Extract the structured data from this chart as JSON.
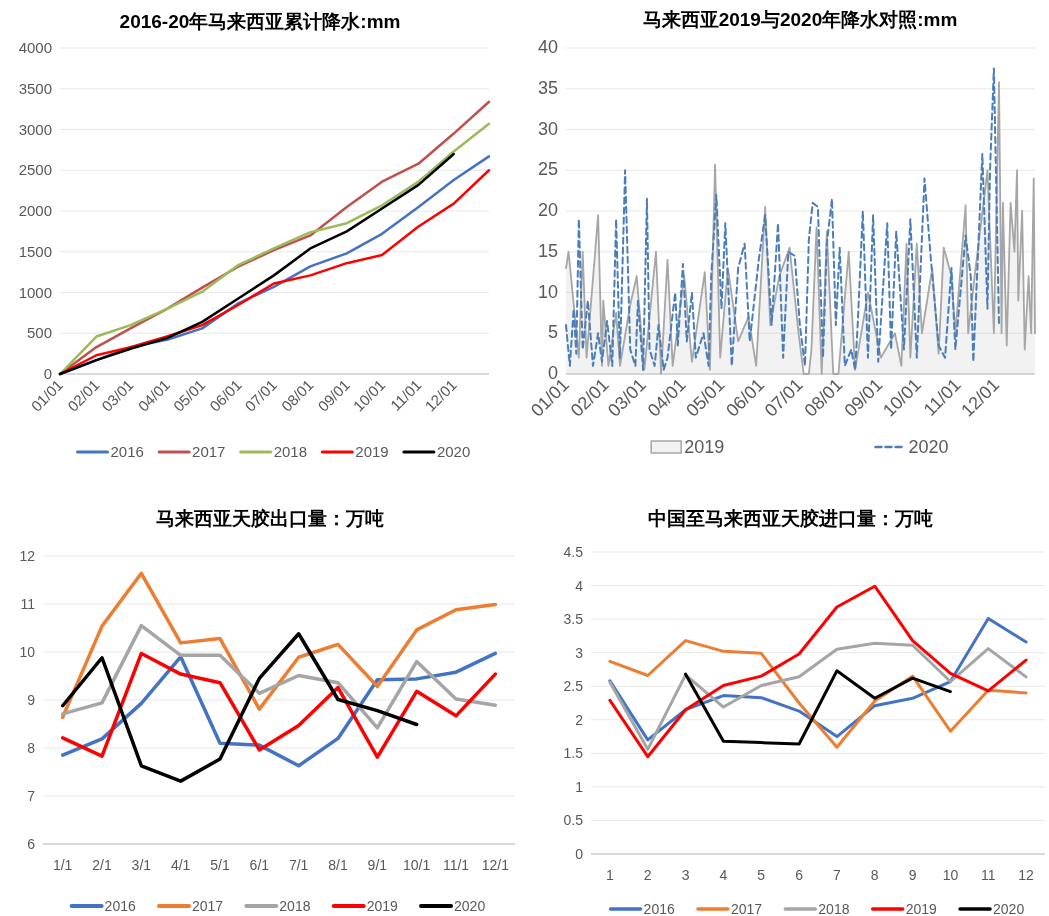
{
  "chart_data": [
    {
      "type": "line",
      "title": "2016-20年马来西亚累计降水:mm",
      "x": [
        "--01-01",
        "--02-01",
        "--03-01",
        "--04-01",
        "--05-01",
        "--06-01",
        "--07-01",
        "--08-01",
        "--09-01",
        "--10-01",
        "--11-01",
        "--12-01",
        "--12-31"
      ],
      "xlim": [
        "--01-01",
        "--12-31"
      ],
      "xticks": [
        {
          "value": "--01-01",
          "label": "01/01"
        },
        {
          "value": "--02-01",
          "label": "02/01"
        },
        {
          "value": "--03-01",
          "label": "03/01"
        },
        {
          "value": "--04-01",
          "label": "04/01"
        },
        {
          "value": "--05-01",
          "label": "05/01"
        },
        {
          "value": "--06-01",
          "label": "06/01"
        },
        {
          "value": "--07-01",
          "label": "07/01"
        },
        {
          "value": "--08-01",
          "label": "08/01"
        },
        {
          "value": "--09-01",
          "label": "09/01"
        },
        {
          "value": "--10-01",
          "label": "10/01"
        },
        {
          "value": "--11-01",
          "label": "11/01"
        },
        {
          "value": "--12-01",
          "label": "12/01"
        }
      ],
      "ylim": [
        0,
        4000
      ],
      "yticks": [
        0,
        500,
        1000,
        1500,
        2000,
        2500,
        3000,
        3500,
        4000
      ],
      "grid": "y",
      "legend": "bottom",
      "series": [
        {
          "name": "2016",
          "color": "#4472c4",
          "values": [
            0,
            170,
            330,
            420,
            560,
            870,
            1070,
            1320,
            1480,
            1720,
            2050,
            2380,
            2670
          ]
        },
        {
          "name": "2017",
          "color": "#c0504d",
          "values": [
            0,
            330,
            560,
            800,
            1060,
            1320,
            1520,
            1700,
            2050,
            2360,
            2580,
            2950,
            3340
          ]
        },
        {
          "name": "2018",
          "color": "#9bbb59",
          "values": [
            0,
            460,
            600,
            800,
            1010,
            1340,
            1540,
            1740,
            1850,
            2070,
            2360,
            2730,
            3070
          ]
        },
        {
          "name": "2019",
          "color": "#ff0000",
          "values": [
            0,
            230,
            330,
            460,
            600,
            850,
            1110,
            1210,
            1360,
            1460,
            1810,
            2090,
            2500
          ]
        },
        {
          "name": "2020",
          "color": "#000000",
          "values": [
            0,
            170,
            310,
            440,
            640,
            930,
            1210,
            1540,
            1750,
            2030,
            2320,
            2700,
            null
          ]
        }
      ]
    },
    {
      "type": "area",
      "title": "马来西亚2019与2020年降水对照:mm",
      "xlim": [
        "--01-01",
        "--12-31"
      ],
      "xticks": [
        {
          "value": "--01-01",
          "label": "01/01"
        },
        {
          "value": "--02-01",
          "label": "02/01"
        },
        {
          "value": "--03-01",
          "label": "03/01"
        },
        {
          "value": "--04-01",
          "label": "04/01"
        },
        {
          "value": "--05-01",
          "label": "05/01"
        },
        {
          "value": "--06-01",
          "label": "06/01"
        },
        {
          "value": "--07-01",
          "label": "07/01"
        },
        {
          "value": "--08-01",
          "label": "08/01"
        },
        {
          "value": "--09-01",
          "label": "09/01"
        },
        {
          "value": "--10-01",
          "label": "10/01"
        },
        {
          "value": "--11-01",
          "label": "11/01"
        },
        {
          "value": "--12-01",
          "label": "12/01"
        }
      ],
      "ylim": [
        0,
        40
      ],
      "yticks": [
        0,
        5,
        10,
        15,
        20,
        25,
        30,
        35,
        40
      ],
      "grid": "y",
      "legend": "bottom",
      "series": [
        {
          "name": "2019",
          "color": "#a6a6a6",
          "x": [
            "--01-01",
            "--01-03",
            "--01-11",
            "--01-14",
            "--01-17",
            "--01-26",
            "--01-29",
            "--01-30",
            "--02-03",
            "--02-09",
            "--02-12",
            "--02-20",
            "--02-25",
            "--03-02",
            "--03-11",
            "--03-15",
            "--03-20",
            "--03-24",
            "--04-02",
            "--04-08",
            "--04-18",
            "--04-22",
            "--04-26",
            "--04-30",
            "--05-06",
            "--05-14",
            "--05-22",
            "--05-28",
            "--06-04",
            "--06-08",
            "--06-15",
            "--06-23",
            "--06-30",
            "--07-04",
            "--07-08",
            "--07-10",
            "--07-14",
            "--07-18",
            "--07-22",
            "--07-27",
            "--07-31",
            "--08-08",
            "--08-13",
            "--08-23",
            "--08-28",
            "--09-02",
            "--09-13",
            "--09-18",
            "--09-22",
            "--09-25",
            "--09-30",
            "--10-04",
            "--10-12",
            "--10-17",
            "--10-21",
            "--10-27",
            "--10-30",
            "--11-07",
            "--11-09",
            "--11-14",
            "--11-24",
            "--11-29",
            "--12-03",
            "--12-05",
            "--12-06",
            "--12-09",
            "--12-12",
            "--12-15",
            "--12-17",
            "--12-18",
            "--12-21",
            "--12-23",
            "--12-26",
            "--12-28",
            "--12-30",
            "--12-31"
          ],
          "values": [
            13,
            15,
            2,
            15,
            2,
            19.5,
            1,
            9,
            1,
            7.5,
            1,
            8.5,
            12,
            0.5,
            15,
            0,
            14,
            1,
            12,
            1.5,
            12.5,
            0.5,
            25.7,
            2,
            13,
            4,
            7,
            1,
            20.5,
            6,
            12,
            15.5,
            5,
            0,
            0,
            3,
            18,
            0,
            17.5,
            0,
            0,
            15,
            0.5,
            10,
            6,
            2,
            5,
            1,
            16,
            2,
            16,
            5,
            13,
            2.5,
            15.5,
            12,
            5,
            20.7,
            5,
            12,
            25,
            5,
            35.8,
            5,
            21,
            3.5,
            21,
            15,
            25,
            9,
            20,
            3,
            12,
            5,
            24,
            5
          ]
        },
        {
          "name": "2020",
          "type": "line",
          "line_style": "dashed",
          "color": "#4a7ebb",
          "x": [
            "--01-01",
            "--01-04",
            "--01-07",
            "--01-09",
            "--01-11",
            "--01-14",
            "--01-18",
            "--01-22",
            "--01-26",
            "--01-29",
            "--02-02",
            "--02-06",
            "--02-09",
            "--02-12",
            "--02-16",
            "--02-20",
            "--02-24",
            "--02-26",
            "--03-01",
            "--03-04",
            "--03-06",
            "--03-10",
            "--03-13",
            "--03-17",
            "--03-20",
            "--03-26",
            "--03-28",
            "--04-01",
            "--04-04",
            "--04-08",
            "--04-11",
            "--04-17",
            "--04-21",
            "--04-23",
            "--04-27",
            "--05-01",
            "--05-04",
            "--05-09",
            "--05-14",
            "--05-19",
            "--05-23",
            "--05-30",
            "--06-04",
            "--06-09",
            "--06-14",
            "--06-18",
            "--06-22",
            "--06-27",
            "--07-01",
            "--07-05",
            "--07-08",
            "--07-11",
            "--07-15",
            "--07-19",
            "--07-22",
            "--07-26",
            "--07-29",
            "--08-01",
            "--08-05",
            "--08-10",
            "--08-13",
            "--08-15",
            "--08-19",
            "--08-23",
            "--08-27",
            "--08-31",
            "--09-07",
            "--09-10",
            "--09-14",
            "--09-20",
            "--09-25",
            "--09-30",
            "--10-06",
            "--10-11",
            "--10-17",
            "--10-22",
            "--10-27",
            "--10-30",
            "--11-07",
            "--11-11",
            "--11-13",
            "--11-20",
            "--11-24",
            "--11-26",
            "--11-29",
            "--12-03"
          ],
          "values": [
            6,
            1,
            8,
            2.5,
            19,
            3,
            9,
            1,
            5,
            1.5,
            6.5,
            1,
            19,
            2,
            25,
            3,
            1,
            9,
            0.5,
            21.5,
            3,
            1,
            6,
            0.5,
            2,
            10,
            3.5,
            13.5,
            4,
            10,
            2,
            5,
            1,
            12,
            22,
            8,
            18.5,
            1,
            13,
            16,
            4,
            14,
            19.5,
            6,
            18.5,
            2,
            15,
            14.5,
            6,
            1,
            16.5,
            21,
            20.5,
            2,
            16,
            21.5,
            6,
            15.5,
            1,
            3,
            0.5,
            6,
            20,
            2,
            19.5,
            1.5,
            18.5,
            3,
            17.5,
            3,
            19,
            2,
            24,
            14,
            3.5,
            2,
            13,
            3,
            17,
            12,
            1.5,
            27,
            8,
            25,
            37.5,
            6
          ]
        }
      ]
    },
    {
      "type": "line",
      "title": "马来西亚天胶出口量：万吨",
      "categories": [
        "1/1",
        "2/1",
        "3/1",
        "4/1",
        "5/1",
        "6/1",
        "7/1",
        "8/1",
        "9/1",
        "10/1",
        "11/1",
        "12/1"
      ],
      "ylim": [
        6,
        12
      ],
      "yticks": [
        6,
        7,
        8,
        9,
        10,
        11,
        12
      ],
      "grid": "y",
      "legend": "bottom",
      "series": [
        {
          "name": "2016",
          "color": "#4472c4",
          "values": [
            7.85,
            8.19,
            8.93,
            9.9,
            8.1,
            8.06,
            7.63,
            8.2,
            9.42,
            9.44,
            9.58,
            9.97
          ]
        },
        {
          "name": "2017",
          "color": "#ed7d31",
          "values": [
            8.64,
            10.54,
            11.64,
            10.19,
            10.28,
            8.81,
            9.89,
            10.16,
            9.28,
            10.46,
            10.88,
            10.99
          ]
        },
        {
          "name": "2018",
          "color": "#a5a5a5",
          "values": [
            8.71,
            8.94,
            10.55,
            9.93,
            9.93,
            9.14,
            9.51,
            9.36,
            8.42,
            9.8,
            9.02,
            8.89
          ]
        },
        {
          "name": "2019",
          "color": "#ff0000",
          "values": [
            8.21,
            7.83,
            9.97,
            9.54,
            9.36,
            7.96,
            8.47,
            9.26,
            7.81,
            9.18,
            8.67,
            9.54
          ]
        },
        {
          "name": "2020",
          "color": "#000000",
          "values": [
            8.88,
            9.88,
            7.63,
            7.31,
            7.77,
            9.45,
            10.38,
            9.01,
            8.78,
            8.49,
            null,
            null
          ]
        }
      ]
    },
    {
      "type": "line",
      "title": "中国至马来西亚天胶进口量：万吨",
      "categories": [
        "1",
        "2",
        "3",
        "4",
        "5",
        "6",
        "7",
        "8",
        "9",
        "10",
        "11",
        "12"
      ],
      "ylim": [
        0,
        4.5
      ],
      "yticks": [
        0,
        0.5,
        1,
        1.5,
        2,
        2.5,
        3,
        3.5,
        4,
        4.5
      ],
      "grid": "y",
      "legend": "bottom",
      "series": [
        {
          "name": "2016",
          "color": "#4472c4",
          "values": [
            2.58,
            1.7,
            2.15,
            2.36,
            2.33,
            2.13,
            1.75,
            2.21,
            2.32,
            2.57,
            3.51,
            3.16
          ]
        },
        {
          "name": "2017",
          "color": "#ed7d31",
          "values": [
            2.87,
            2.66,
            3.18,
            3.02,
            2.99,
            2.25,
            1.59,
            2.28,
            2.65,
            1.83,
            2.44,
            2.4
          ]
        },
        {
          "name": "2018",
          "color": "#a5a5a5",
          "values": [
            2.56,
            1.56,
            2.67,
            2.19,
            2.51,
            2.64,
            3.05,
            3.14,
            3.11,
            2.57,
            3.06,
            2.64
          ]
        },
        {
          "name": "2019",
          "color": "#ff0000",
          "values": [
            2.29,
            1.45,
            2.15,
            2.51,
            2.65,
            2.98,
            3.68,
            3.99,
            3.18,
            2.69,
            2.43,
            2.89
          ]
        },
        {
          "name": "2020",
          "color": "#000000",
          "values": [
            null,
            null,
            2.68,
            1.68,
            1.66,
            1.64,
            2.73,
            2.32,
            2.62,
            2.42,
            null,
            null
          ]
        }
      ]
    }
  ]
}
